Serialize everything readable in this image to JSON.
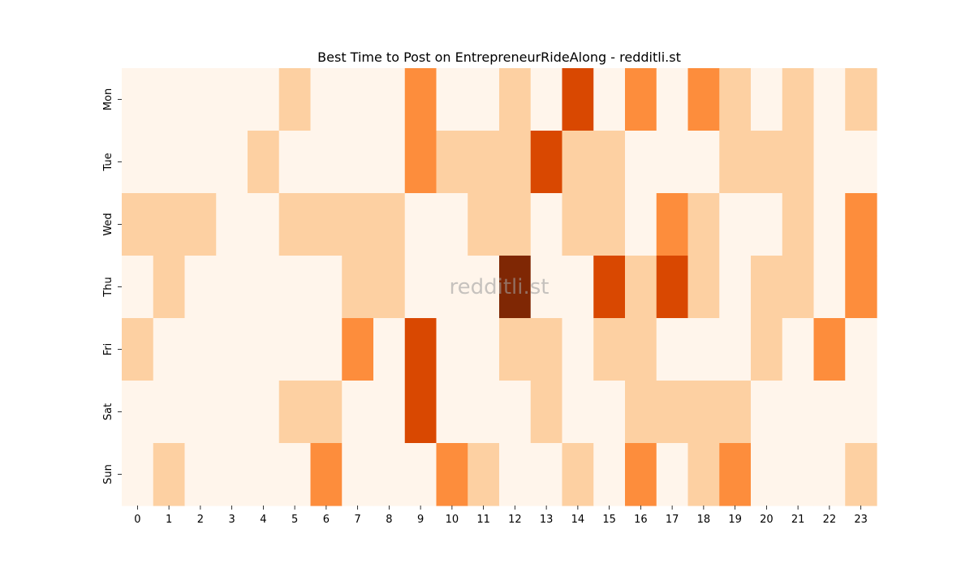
{
  "chart_data": {
    "type": "heatmap",
    "title": "Best Time to Post on EntrepreneurRideAlong - redditli.st",
    "watermark": "redditli.st",
    "xlabel": "",
    "ylabel": "",
    "x_categories": [
      "0",
      "1",
      "2",
      "3",
      "4",
      "5",
      "6",
      "7",
      "8",
      "9",
      "10",
      "11",
      "12",
      "13",
      "14",
      "15",
      "16",
      "17",
      "18",
      "19",
      "20",
      "21",
      "22",
      "23"
    ],
    "y_categories": [
      "Mon",
      "Tue",
      "Wed",
      "Thu",
      "Fri",
      "Sat",
      "Sun"
    ],
    "value_range": [
      0,
      4
    ],
    "colormap": [
      "#fff5eb",
      "#fdd0a2",
      "#fd8d3c",
      "#d94801",
      "#7f2704"
    ],
    "values": [
      [
        0,
        0,
        0,
        0,
        0,
        1,
        0,
        0,
        0,
        2,
        0,
        0,
        1,
        0,
        3,
        0,
        2,
        0,
        2,
        1,
        0,
        1,
        0,
        1
      ],
      [
        0,
        0,
        0,
        0,
        1,
        0,
        0,
        0,
        0,
        2,
        1,
        1,
        1,
        3,
        1,
        1,
        0,
        0,
        0,
        1,
        1,
        1,
        0,
        0
      ],
      [
        1,
        1,
        1,
        0,
        0,
        1,
        1,
        1,
        1,
        0,
        0,
        1,
        1,
        0,
        1,
        1,
        0,
        2,
        1,
        0,
        0,
        1,
        0,
        2
      ],
      [
        0,
        1,
        0,
        0,
        0,
        0,
        0,
        1,
        1,
        0,
        0,
        0,
        4,
        0,
        0,
        3,
        1,
        3,
        1,
        0,
        1,
        1,
        0,
        2
      ],
      [
        1,
        0,
        0,
        0,
        0,
        0,
        0,
        2,
        0,
        3,
        0,
        0,
        1,
        1,
        0,
        1,
        1,
        0,
        0,
        0,
        1,
        0,
        2,
        0
      ],
      [
        0,
        0,
        0,
        0,
        0,
        1,
        1,
        0,
        0,
        3,
        0,
        0,
        0,
        1,
        0,
        0,
        1,
        1,
        1,
        1,
        0,
        0,
        0,
        0
      ],
      [
        0,
        1,
        0,
        0,
        0,
        0,
        2,
        0,
        0,
        0,
        2,
        1,
        0,
        0,
        1,
        0,
        2,
        0,
        1,
        2,
        0,
        0,
        0,
        1
      ]
    ]
  }
}
